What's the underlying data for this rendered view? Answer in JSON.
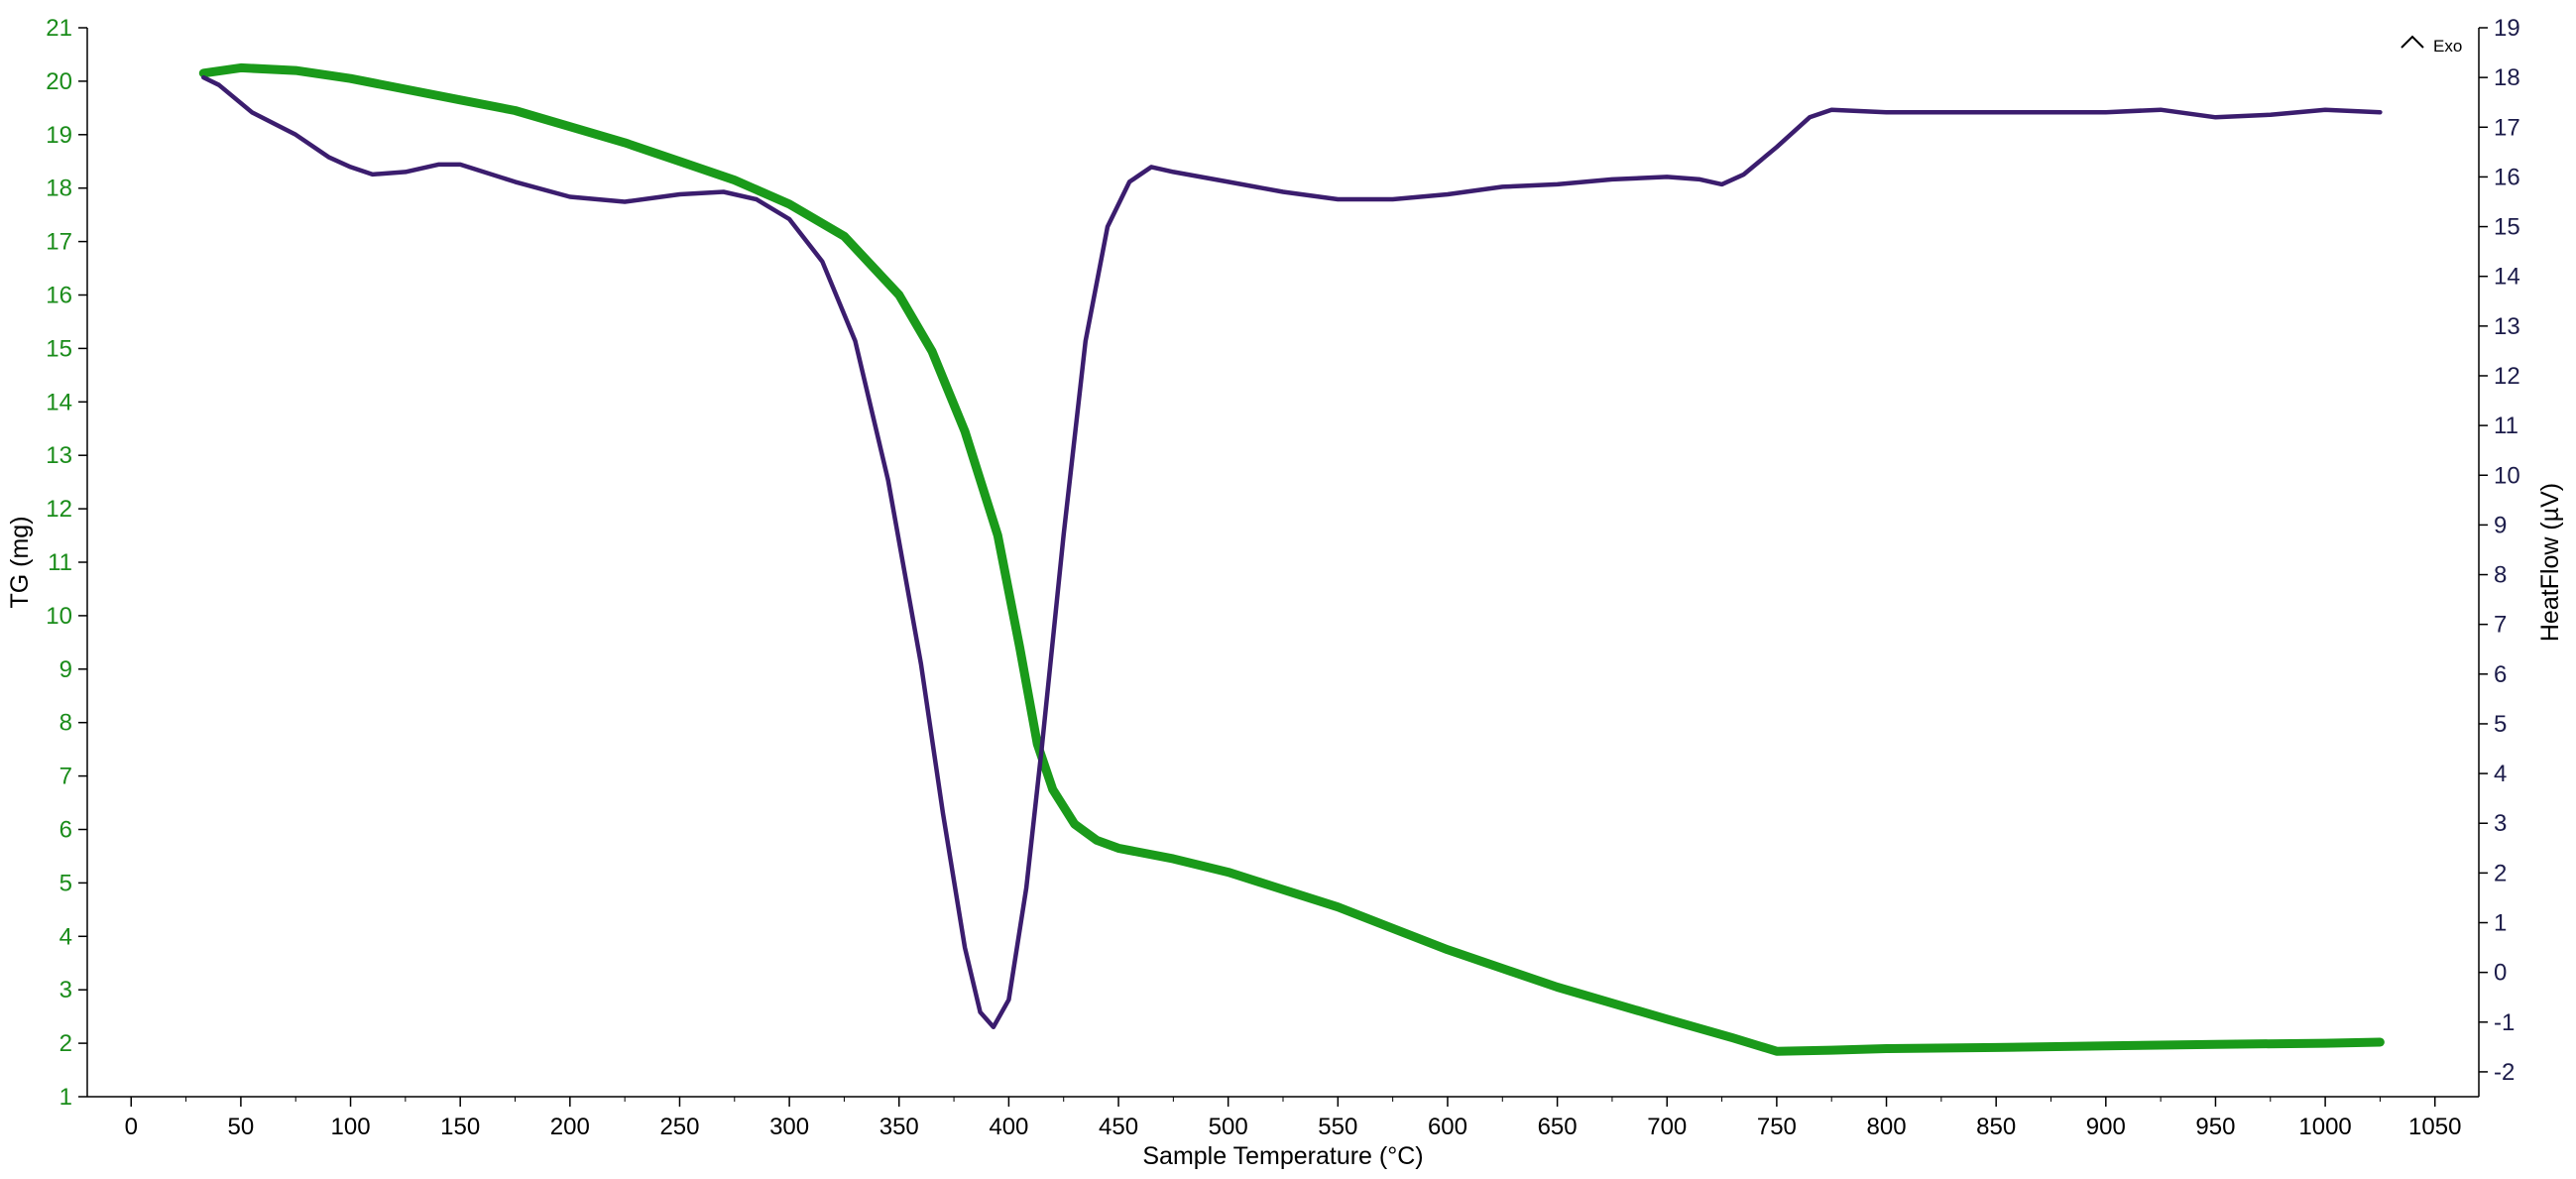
{
  "chart_data": {
    "type": "line",
    "title": "",
    "xlabel": "Sample Temperature (°C)",
    "ylabel_left": "TG (mg)",
    "ylabel_right": "HeatFlow (µV)",
    "exo_indicator": "Exo",
    "xlim": [
      -20,
      1070
    ],
    "ylim_left": [
      1,
      21
    ],
    "ylim_right": [
      -2.5,
      19
    ],
    "x_ticks": [
      0,
      50,
      100,
      150,
      200,
      250,
      300,
      350,
      400,
      450,
      500,
      550,
      600,
      650,
      700,
      750,
      800,
      850,
      900,
      950,
      1000,
      1050
    ],
    "y_ticks_left": [
      1,
      2,
      3,
      4,
      5,
      6,
      7,
      8,
      9,
      10,
      11,
      12,
      13,
      14,
      15,
      16,
      17,
      18,
      19,
      20,
      21
    ],
    "y_ticks_right": [
      -2,
      -1,
      0,
      1,
      2,
      3,
      4,
      5,
      6,
      7,
      8,
      9,
      10,
      11,
      12,
      13,
      14,
      15,
      16,
      17,
      18,
      19
    ],
    "colors": {
      "tg": "#1a9a1a",
      "heatflow": "#3b1d6e",
      "left_axis_labels": "#1a8c1a",
      "right_axis_labels": "#1c1c4a",
      "axis": "#000000"
    },
    "series": [
      {
        "key": "tg",
        "axis": "left",
        "points": [
          [
            33,
            20.15
          ],
          [
            50,
            20.25
          ],
          [
            75,
            20.2
          ],
          [
            100,
            20.05
          ],
          [
            125,
            19.85
          ],
          [
            150,
            19.65
          ],
          [
            175,
            19.45
          ],
          [
            200,
            19.15
          ],
          [
            225,
            18.85
          ],
          [
            250,
            18.5
          ],
          [
            275,
            18.15
          ],
          [
            300,
            17.7
          ],
          [
            325,
            17.1
          ],
          [
            350,
            16.0
          ],
          [
            365,
            14.95
          ],
          [
            380,
            13.45
          ],
          [
            395,
            11.5
          ],
          [
            405,
            9.4
          ],
          [
            413,
            7.6
          ],
          [
            420,
            6.75
          ],
          [
            430,
            6.1
          ],
          [
            440,
            5.8
          ],
          [
            450,
            5.65
          ],
          [
            475,
            5.45
          ],
          [
            500,
            5.2
          ],
          [
            550,
            4.55
          ],
          [
            600,
            3.75
          ],
          [
            650,
            3.05
          ],
          [
            700,
            2.45
          ],
          [
            730,
            2.1
          ],
          [
            750,
            1.85
          ],
          [
            775,
            1.87
          ],
          [
            800,
            1.9
          ],
          [
            850,
            1.92
          ],
          [
            900,
            1.95
          ],
          [
            950,
            1.98
          ],
          [
            1000,
            2.0
          ],
          [
            1025,
            2.02
          ]
        ]
      },
      {
        "key": "heatflow",
        "axis": "right",
        "points": [
          [
            33,
            18.0
          ],
          [
            40,
            17.85
          ],
          [
            55,
            17.3
          ],
          [
            75,
            16.85
          ],
          [
            90,
            16.4
          ],
          [
            100,
            16.2
          ],
          [
            110,
            16.05
          ],
          [
            125,
            16.1
          ],
          [
            140,
            16.25
          ],
          [
            150,
            16.25
          ],
          [
            175,
            15.9
          ],
          [
            200,
            15.6
          ],
          [
            225,
            15.5
          ],
          [
            250,
            15.65
          ],
          [
            270,
            15.7
          ],
          [
            285,
            15.55
          ],
          [
            300,
            15.15
          ],
          [
            315,
            14.3
          ],
          [
            330,
            12.7
          ],
          [
            345,
            9.9
          ],
          [
            360,
            6.2
          ],
          [
            370,
            3.2
          ],
          [
            380,
            0.5
          ],
          [
            387,
            -0.8
          ],
          [
            393,
            -1.1
          ],
          [
            400,
            -0.55
          ],
          [
            408,
            1.7
          ],
          [
            415,
            4.5
          ],
          [
            425,
            8.8
          ],
          [
            435,
            12.7
          ],
          [
            445,
            15.0
          ],
          [
            455,
            15.9
          ],
          [
            465,
            16.2
          ],
          [
            475,
            16.1
          ],
          [
            500,
            15.9
          ],
          [
            525,
            15.7
          ],
          [
            550,
            15.55
          ],
          [
            575,
            15.55
          ],
          [
            600,
            15.65
          ],
          [
            625,
            15.8
          ],
          [
            650,
            15.85
          ],
          [
            675,
            15.95
          ],
          [
            700,
            16.0
          ],
          [
            715,
            15.95
          ],
          [
            725,
            15.85
          ],
          [
            735,
            16.05
          ],
          [
            750,
            16.6
          ],
          [
            765,
            17.2
          ],
          [
            775,
            17.35
          ],
          [
            800,
            17.3
          ],
          [
            850,
            17.3
          ],
          [
            900,
            17.3
          ],
          [
            925,
            17.35
          ],
          [
            950,
            17.2
          ],
          [
            975,
            17.25
          ],
          [
            1000,
            17.35
          ],
          [
            1025,
            17.3
          ]
        ]
      }
    ]
  }
}
